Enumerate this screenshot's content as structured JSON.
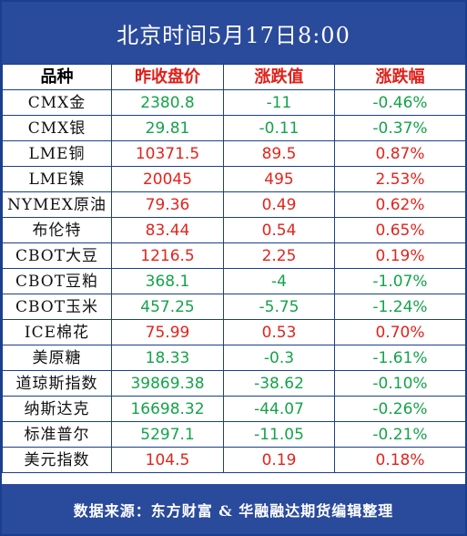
{
  "title": "北京时间5月17日8:00",
  "headers": {
    "name": "品种",
    "price": "昨收盘价",
    "change": "涨跌值",
    "pct": "涨跌幅"
  },
  "colors": {
    "up": "#e3231c",
    "down": "#14a34a",
    "header_bg": "#2a4a9c"
  },
  "rows": [
    {
      "name": "CMX金",
      "price": "2380.8",
      "change": "-11",
      "pct": "-0.46%",
      "dir": "down"
    },
    {
      "name": "CMX银",
      "price": "29.81",
      "change": "-0.11",
      "pct": "-0.37%",
      "dir": "down"
    },
    {
      "name": "LME铜",
      "price": "10371.5",
      "change": "89.5",
      "pct": "0.87%",
      "dir": "up"
    },
    {
      "name": "LME镍",
      "price": "20045",
      "change": "495",
      "pct": "2.53%",
      "dir": "up"
    },
    {
      "name": "NYMEX原油",
      "price": "79.36",
      "change": "0.49",
      "pct": "0.62%",
      "dir": "up"
    },
    {
      "name": "布伦特",
      "price": "83.44",
      "change": "0.54",
      "pct": "0.65%",
      "dir": "up"
    },
    {
      "name": "CBOT大豆",
      "price": "1216.5",
      "change": "2.25",
      "pct": "0.19%",
      "dir": "up"
    },
    {
      "name": "CBOT豆粕",
      "price": "368.1",
      "change": "-4",
      "pct": "-1.07%",
      "dir": "down"
    },
    {
      "name": "CBOT玉米",
      "price": "457.25",
      "change": "-5.75",
      "pct": "-1.24%",
      "dir": "down"
    },
    {
      "name": "ICE棉花",
      "price": "75.99",
      "change": "0.53",
      "pct": "0.70%",
      "dir": "up"
    },
    {
      "name": "美原糖",
      "price": "18.33",
      "change": "-0.3",
      "pct": "-1.61%",
      "dir": "down"
    },
    {
      "name": "道琼斯指数",
      "price": "39869.38",
      "change": "-38.62",
      "pct": "-0.10%",
      "dir": "down"
    },
    {
      "name": "纳斯达克",
      "price": "16698.32",
      "change": "-44.07",
      "pct": "-0.26%",
      "dir": "down"
    },
    {
      "name": "标准普尔",
      "price": "5297.1",
      "change": "-11.05",
      "pct": "-0.21%",
      "dir": "down"
    },
    {
      "name": "美元指数",
      "price": "104.5",
      "change": "0.19",
      "pct": "0.18%",
      "dir": "up"
    }
  ],
  "footer": "数据来源：东方财富 & 华融融达期货编辑整理"
}
